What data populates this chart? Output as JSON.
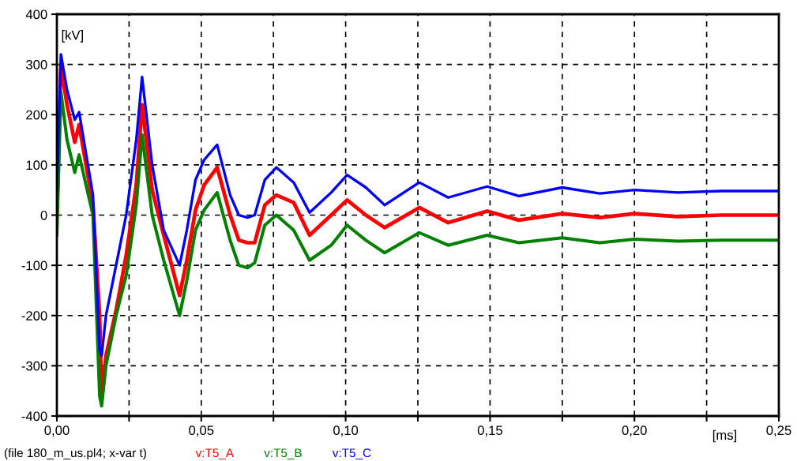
{
  "chart_data": {
    "type": "line",
    "ylabel": "[kV]",
    "xlabel": "[ms]",
    "annotations": [
      "(file 180_m_us.pl4; x-var t)"
    ],
    "x": [
      0,
      0.0014,
      0.0035,
      0.0062,
      0.0077,
      0.0125,
      0.0148,
      0.0155,
      0.017,
      0.0205,
      0.024,
      0.0275,
      0.0295,
      0.033,
      0.037,
      0.0425,
      0.045,
      0.048,
      0.051,
      0.0555,
      0.06,
      0.063,
      0.066,
      0.0685,
      0.072,
      0.076,
      0.082,
      0.0875,
      0.095,
      0.1005,
      0.107,
      0.1135,
      0.1255,
      0.1355,
      0.149,
      0.16,
      0.175,
      0.188,
      0.2,
      0.215,
      0.23,
      0.25
    ],
    "series": [
      {
        "name": "v:T5_A",
        "color": "#ff0000",
        "values": [
          0,
          300,
          220,
          145,
          180,
          20,
          -200,
          -360,
          -280,
          -190,
          -80,
          60,
          220,
          50,
          -40,
          -160,
          -90,
          10,
          60,
          95,
          0,
          -50,
          -55,
          -55,
          20,
          40,
          25,
          -40,
          0,
          30,
          0,
          -25,
          15,
          -15,
          8,
          -10,
          3,
          -5,
          3,
          -3,
          0,
          0
        ]
      },
      {
        "name": "v:T5_B",
        "color": "#008000",
        "values": [
          -40,
          245,
          150,
          85,
          120,
          0,
          -360,
          -380,
          -300,
          -200,
          -120,
          20,
          160,
          0,
          -90,
          -200,
          -130,
          -30,
          10,
          45,
          -50,
          -100,
          -105,
          -95,
          -20,
          0,
          -30,
          -90,
          -60,
          -20,
          -50,
          -75,
          -35,
          -60,
          -40,
          -55,
          -45,
          -55,
          -48,
          -52,
          -50,
          -50
        ]
      },
      {
        "name": "v:T5_C",
        "color": "#0000ff",
        "values": [
          50,
          320,
          250,
          190,
          205,
          40,
          -270,
          -280,
          -200,
          -100,
          0,
          150,
          275,
          100,
          -30,
          -100,
          -30,
          70,
          110,
          140,
          40,
          0,
          -5,
          0,
          70,
          95,
          65,
          5,
          45,
          80,
          55,
          20,
          65,
          35,
          57,
          38,
          55,
          43,
          50,
          45,
          48,
          48
        ]
      }
    ],
    "xlim": [
      0,
      0.25
    ],
    "ylim": [
      -400,
      400
    ],
    "xticks": [
      {
        "value": 0,
        "label": "0,00"
      },
      {
        "value": 0.025,
        "label": null
      },
      {
        "value": 0.05,
        "label": "0,05"
      },
      {
        "value": 0.075,
        "label": null
      },
      {
        "value": 0.1,
        "label": "0,10"
      },
      {
        "value": 0.125,
        "label": null
      },
      {
        "value": 0.15,
        "label": "0,15"
      },
      {
        "value": 0.175,
        "label": null
      },
      {
        "value": 0.2,
        "label": "0,20"
      },
      {
        "value": 0.225,
        "label": null
      },
      {
        "value": 0.25,
        "label": "0,25"
      }
    ],
    "yticks": [
      -400,
      -300,
      -200,
      -100,
      0,
      100,
      200,
      300,
      400
    ],
    "grid": true,
    "legend": "bottom",
    "line_style": "solid",
    "marker": "none"
  }
}
